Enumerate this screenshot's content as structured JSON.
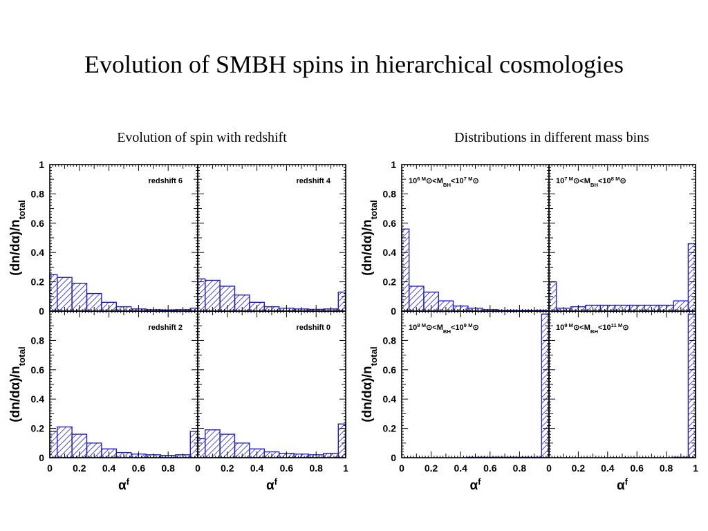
{
  "slide": {
    "title": "Evolution of SMBH spins in hierarchical cosmologies",
    "left_subtitle": "Evolution of spin with redshift",
    "right_subtitle": "Distributions in different mass bins"
  },
  "colors": {
    "bar": "#2020c0",
    "hatch": "#2020c0",
    "frame": "#000000"
  },
  "chart_data": [
    {
      "type": "bar",
      "group": "left",
      "xlabel": "α^f",
      "ylabel": "(dn/dα)/n_total",
      "xlim": [
        0,
        1
      ],
      "ylim": [
        0,
        1
      ],
      "xticks": [
        "0",
        "0.2",
        "0.4",
        "0.6",
        "0.8"
      ],
      "xticks_right": [
        "0",
        "0.2",
        "0.4",
        "0.6",
        "0.8",
        "1"
      ],
      "yticks": [
        "0",
        "0.2",
        "0.4",
        "0.6",
        "0.8",
        "1"
      ],
      "yticks_lower": [
        "0",
        "0.2",
        "0.4",
        "0.6",
        "0.8"
      ],
      "bin_edges": [
        0,
        0.05,
        0.15,
        0.25,
        0.35,
        0.45,
        0.55,
        0.65,
        0.75,
        0.85,
        0.95,
        1.0
      ],
      "panels": [
        {
          "label": "redshift 6",
          "values": [
            0.25,
            0.23,
            0.19,
            0.12,
            0.06,
            0.03,
            0.015,
            0.01,
            0.008,
            0.01,
            0.02
          ]
        },
        {
          "label": "redshift 4",
          "values": [
            0.22,
            0.21,
            0.17,
            0.11,
            0.06,
            0.03,
            0.02,
            0.015,
            0.012,
            0.015,
            0.13
          ]
        },
        {
          "label": "redshift 2",
          "values": [
            0.18,
            0.21,
            0.16,
            0.1,
            0.06,
            0.035,
            0.025,
            0.02,
            0.015,
            0.02,
            0.18
          ]
        },
        {
          "label": "redshift 0",
          "values": [
            0.13,
            0.19,
            0.16,
            0.1,
            0.06,
            0.04,
            0.03,
            0.025,
            0.02,
            0.03,
            0.23
          ]
        }
      ]
    },
    {
      "type": "bar",
      "group": "right",
      "xlabel": "α^f",
      "ylabel": "(dn/dα)/n_total",
      "xlim": [
        0,
        1
      ],
      "ylim": [
        0,
        1
      ],
      "xticks": [
        "0",
        "0.2",
        "0.4",
        "0.6",
        "0.8"
      ],
      "xticks_right": [
        "0",
        "0.2",
        "0.4",
        "0.6",
        "0.8",
        "1"
      ],
      "yticks": [
        "0",
        "0.2",
        "0.4",
        "0.6",
        "0.8",
        "1"
      ],
      "yticks_lower": [
        "0",
        "0.2",
        "0.4",
        "0.6",
        "0.8"
      ],
      "bin_edges": [
        0,
        0.05,
        0.15,
        0.25,
        0.35,
        0.45,
        0.55,
        0.65,
        0.75,
        0.85,
        0.95,
        1.0
      ],
      "panels": [
        {
          "label": "10^6 M_⊙<M_BH<10^7 M_⊙",
          "values": [
            0.56,
            0.17,
            0.13,
            0.07,
            0.035,
            0.02,
            0.01,
            0.005,
            0.005,
            0.005,
            0.005
          ]
        },
        {
          "label": "10^7 M_⊙<M_BH<10^8 M_⊙",
          "values": [
            0.2,
            0.02,
            0.03,
            0.04,
            0.04,
            0.04,
            0.04,
            0.04,
            0.04,
            0.07,
            0.46
          ]
        },
        {
          "label": "10^8 M_⊙<M_BH<10^9 M_⊙",
          "values": [
            0,
            0,
            0,
            0,
            0,
            0.003,
            0.003,
            0.003,
            0.003,
            0.003,
            0.98
          ]
        },
        {
          "label": "10^9 M_⊙<M_BH<10^11 M_⊙",
          "values": [
            0,
            0,
            0,
            0,
            0,
            0,
            0,
            0,
            0,
            0.003,
            0.98
          ]
        }
      ]
    }
  ]
}
